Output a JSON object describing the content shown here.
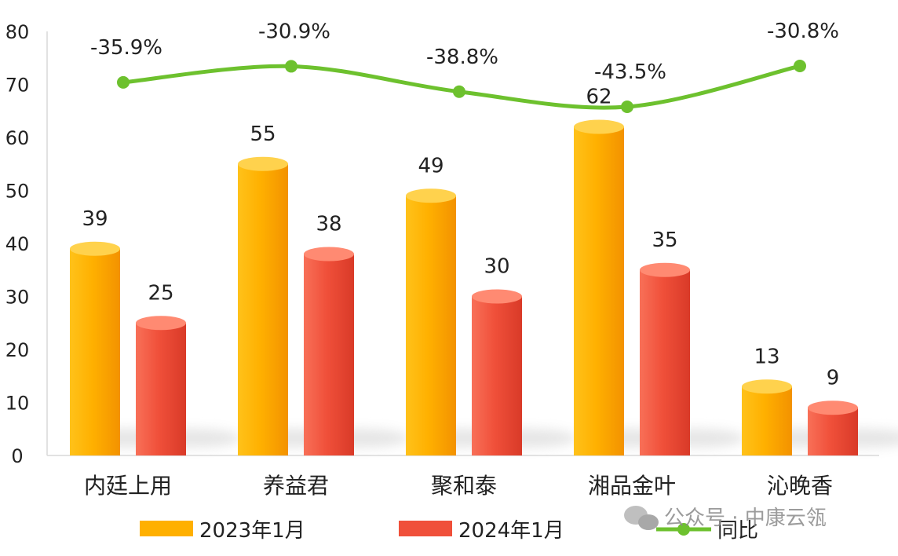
{
  "chart_data": {
    "type": "bar",
    "categories": [
      "内廷上用",
      "养益君",
      "聚和泰",
      "湘品金叶",
      "沁晚香"
    ],
    "series": [
      {
        "name": "2023年1月",
        "values": [
          39,
          55,
          49,
          62,
          13
        ],
        "color": "#FFB000"
      },
      {
        "name": "2024年1月",
        "values": [
          25,
          38,
          30,
          35,
          9
        ],
        "color": "#F0503A"
      },
      {
        "name": "同比",
        "type": "line",
        "values": [
          -35.9,
          -30.9,
          -38.8,
          -43.5,
          -30.8
        ],
        "labels": [
          "-35.9%",
          "-30.9%",
          "-38.8%",
          "-43.5%",
          "-30.8%"
        ],
        "color": "#6DC12E"
      }
    ],
    "ylim": [
      0,
      80
    ],
    "yticks": [
      0,
      10,
      20,
      30,
      40,
      50,
      60,
      70,
      80
    ],
    "grid": false,
    "legend_position": "bottom"
  },
  "watermark": {
    "text": "公众号 · 中康云瓴",
    "icon": "wechat-icon"
  }
}
